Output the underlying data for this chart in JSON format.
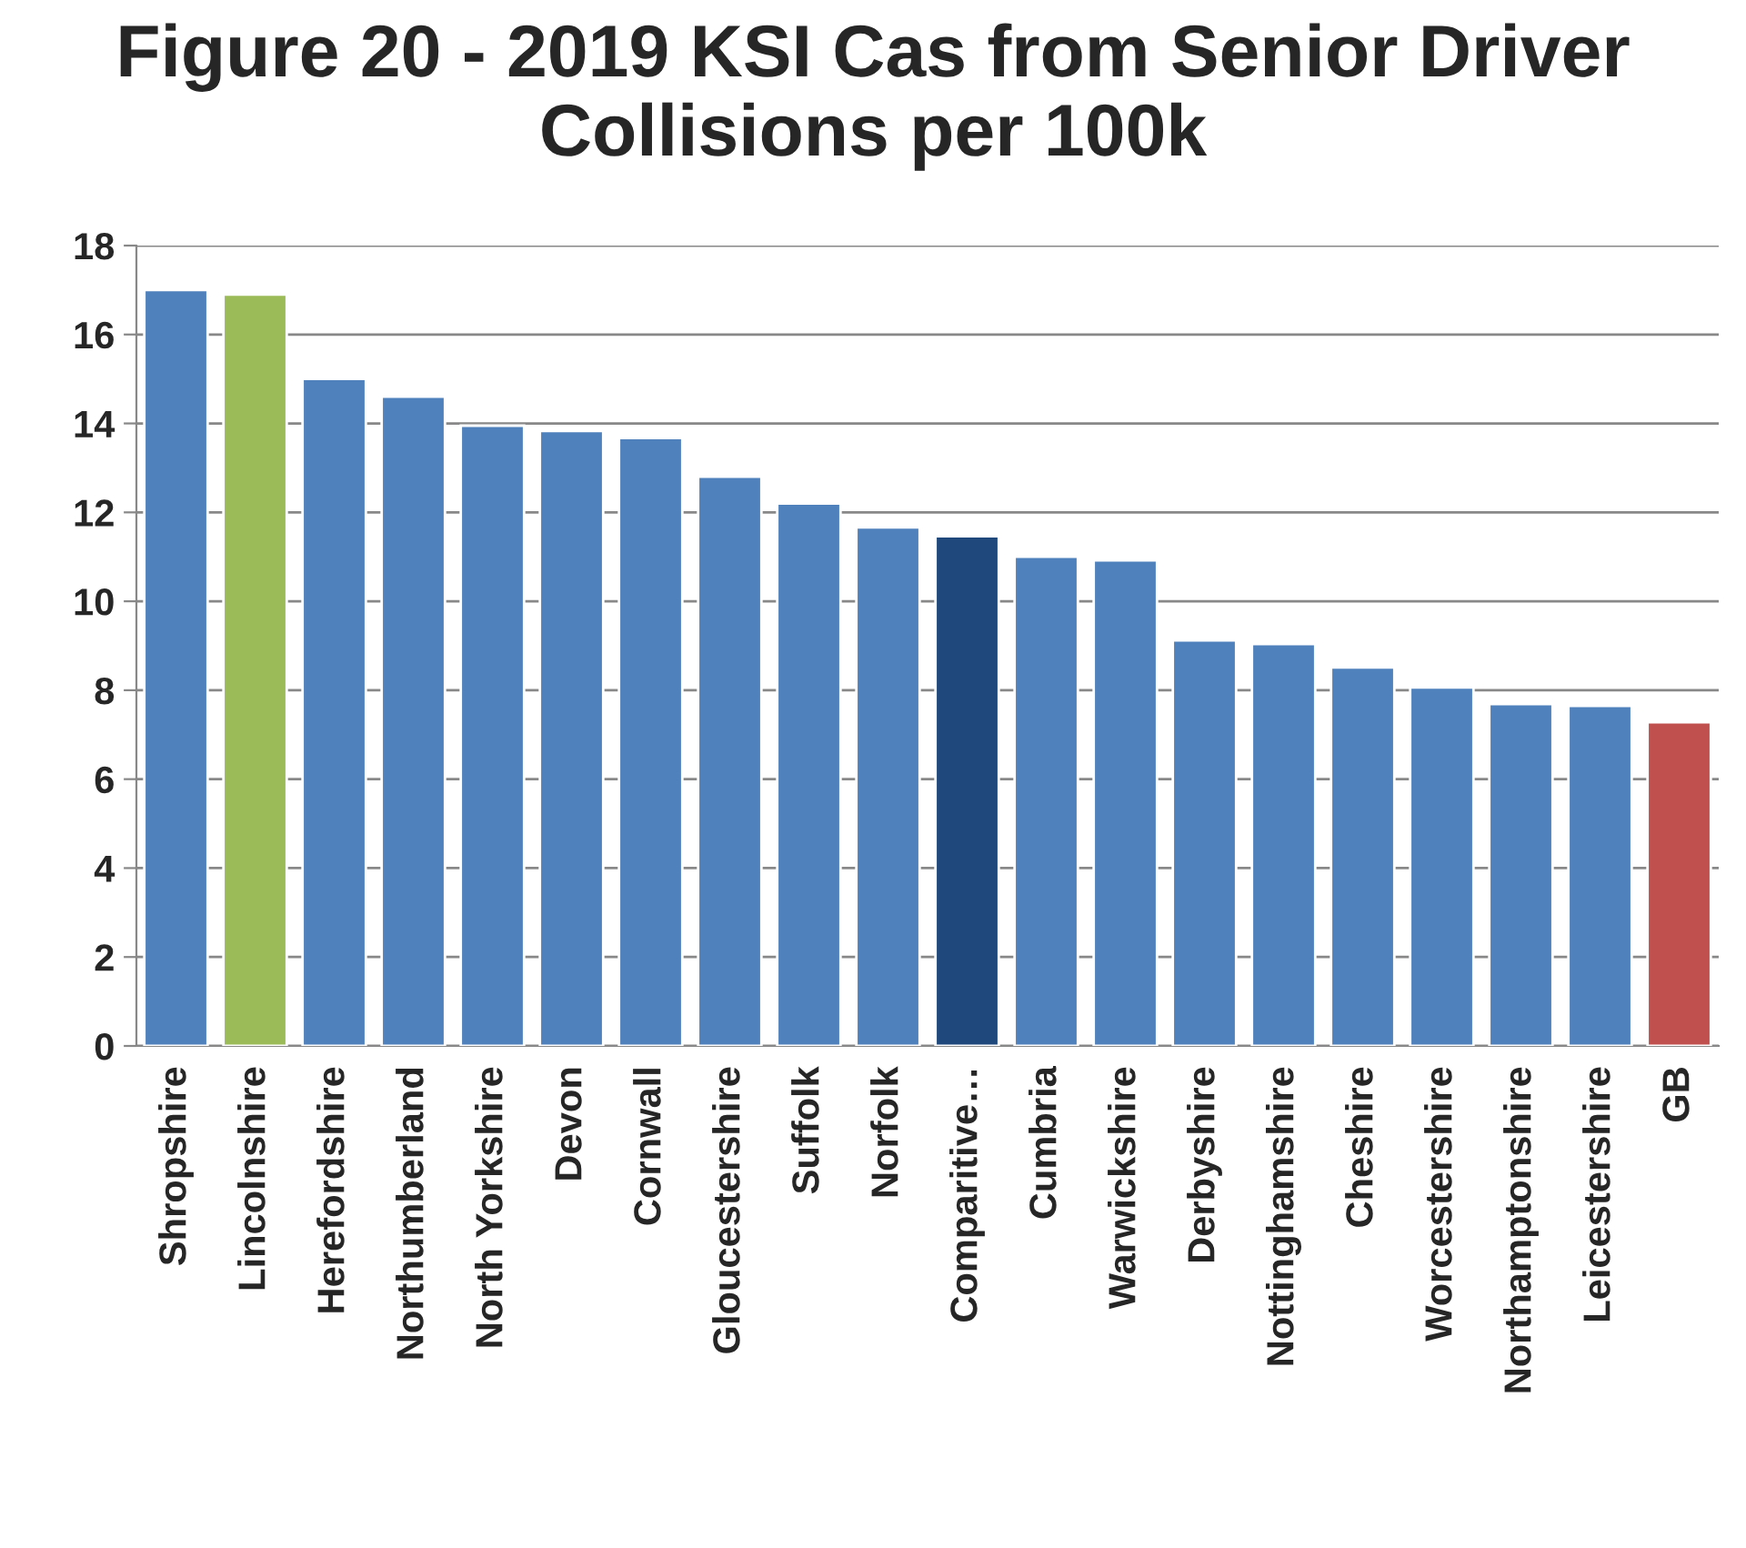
{
  "chart_data": {
    "type": "bar",
    "title": "Figure 20 - 2019 KSI Cas from Senior Driver Collisions per 100k",
    "categories": [
      "Shropshire",
      "Lincolnshire",
      "Herefordshire",
      "Northumberland",
      "North Yorkshire",
      "Devon",
      "Cornwall",
      "Gloucestershire",
      "Suffolk",
      "Norfolk",
      "Comparitive…",
      "Cumbria",
      "Warwickshire",
      "Derbyshire",
      "Nottinghamshire",
      "Cheshire",
      "Worcestershire",
      "Northamptonshire",
      "Leicestershire",
      "GB"
    ],
    "values": [
      17.0,
      16.9,
      15.0,
      14.6,
      13.95,
      13.83,
      13.67,
      12.8,
      12.2,
      11.66,
      11.46,
      11.0,
      10.92,
      9.12,
      9.04,
      8.51,
      8.06,
      7.69,
      7.65,
      7.28
    ],
    "colors": [
      "#4f81bd",
      "#9bbb59",
      "#4f81bd",
      "#4f81bd",
      "#4f81bd",
      "#4f81bd",
      "#4f81bd",
      "#4f81bd",
      "#4f81bd",
      "#4f81bd",
      "#1f497d",
      "#4f81bd",
      "#4f81bd",
      "#4f81bd",
      "#4f81bd",
      "#4f81bd",
      "#4f81bd",
      "#4f81bd",
      "#4f81bd",
      "#c0504d"
    ],
    "ylim": [
      0,
      18
    ],
    "yticks": [
      0,
      2,
      4,
      6,
      8,
      10,
      12,
      14,
      16,
      18
    ],
    "grid": "y",
    "legend": false
  }
}
